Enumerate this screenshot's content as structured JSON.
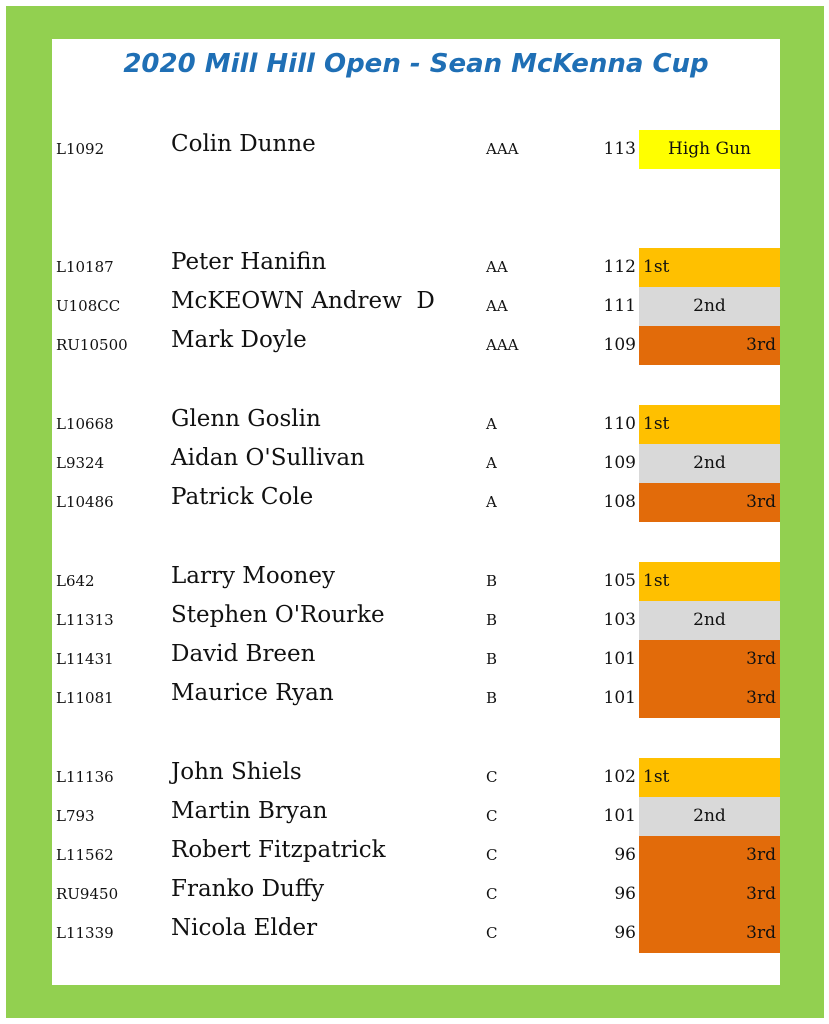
{
  "title": "2020 Mill Hill Open - Sean McKenna Cup",
  "colors": {
    "border": "#92d050",
    "title": "#1f6fb5",
    "high_gun": "#ffff00",
    "first": "#ffc000",
    "second": "#d9d9d9",
    "third": "#e26b0a"
  },
  "rows": [
    {
      "id": "L1092",
      "name": "Colin Dunne",
      "class": "AAA",
      "score": "113",
      "award": "High Gun",
      "type": "high"
    },
    {
      "id": "L10187",
      "name": "Peter Hanifin",
      "class": "AA",
      "score": "112",
      "award": "1st",
      "type": "first"
    },
    {
      "id": "U108CC",
      "name": "McKEOWN Andrew  D",
      "class": "AA",
      "score": "111",
      "award": "2nd",
      "type": "second"
    },
    {
      "id": "RU10500",
      "name": "Mark Doyle",
      "class": "AAA",
      "score": "109",
      "award": "3rd",
      "type": "third"
    },
    {
      "id": "L10668",
      "name": "Glenn Goslin",
      "class": "A",
      "score": "110",
      "award": "1st",
      "type": "first"
    },
    {
      "id": "L9324",
      "name": "Aidan O'Sullivan",
      "class": "A",
      "score": "109",
      "award": "2nd",
      "type": "second"
    },
    {
      "id": "L10486",
      "name": "Patrick Cole",
      "class": "A",
      "score": "108",
      "award": "3rd",
      "type": "third"
    },
    {
      "id": "L642",
      "name": "Larry Mooney",
      "class": "B",
      "score": "105",
      "award": "1st",
      "type": "first"
    },
    {
      "id": "L11313",
      "name": "Stephen O'Rourke",
      "class": "B",
      "score": "103",
      "award": "2nd",
      "type": "second"
    },
    {
      "id": "L11431",
      "name": "David Breen",
      "class": "B",
      "score": "101",
      "award": "3rd",
      "type": "third"
    },
    {
      "id": "L11081",
      "name": "Maurice Ryan",
      "class": "B",
      "score": "101",
      "award": "3rd",
      "type": "third"
    },
    {
      "id": "L11136",
      "name": "John Shiels",
      "class": "C",
      "score": "102",
      "award": "1st",
      "type": "first"
    },
    {
      "id": "L793",
      "name": "Martin Bryan",
      "class": "C",
      "score": "101",
      "award": "2nd",
      "type": "second"
    },
    {
      "id": "L11562",
      "name": "Robert Fitzpatrick",
      "class": "C",
      "score": "96",
      "award": "3rd",
      "type": "third"
    },
    {
      "id": "RU9450",
      "name": "Franko Duffy",
      "class": "C",
      "score": "96",
      "award": "3rd",
      "type": "third"
    },
    {
      "id": "L11339",
      "name": "Nicola Elder",
      "class": "C",
      "score": "96",
      "award": "3rd",
      "type": "third"
    }
  ]
}
